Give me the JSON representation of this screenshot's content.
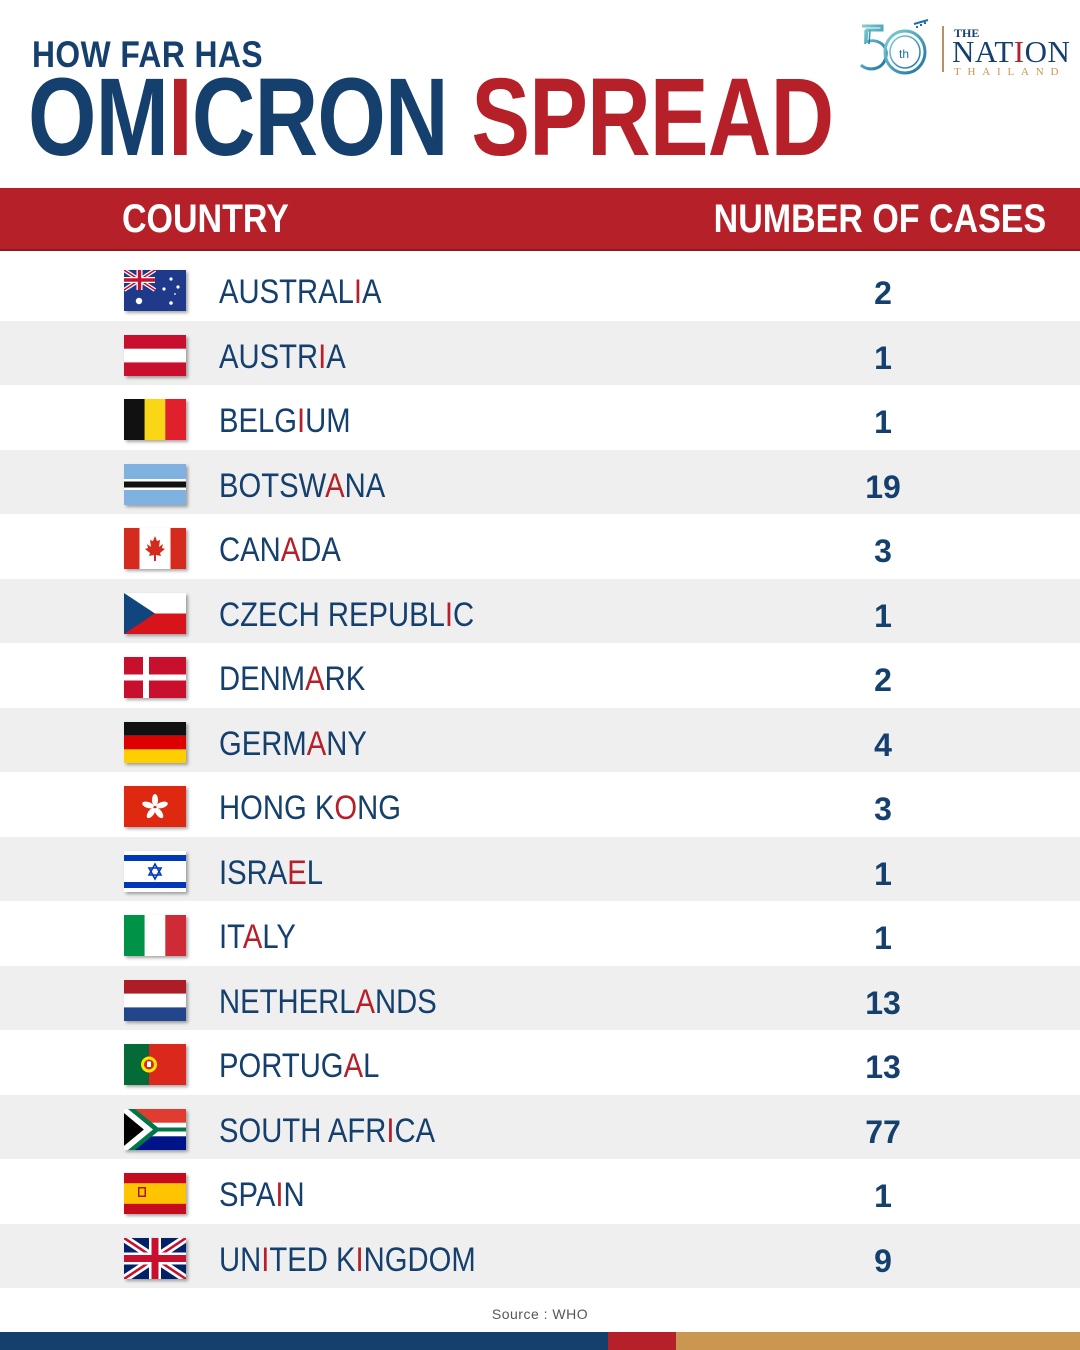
{
  "header": {
    "title_small": "HOW FAR HAS",
    "title_word1": [
      "OM",
      "I",
      "CRON"
    ],
    "title_word2": "SPREAD",
    "logo": {
      "the": "THE",
      "nation_pre": "NAT",
      "nation_i": "I",
      "nation_post": "ON",
      "thailand": "THAILAND",
      "anniversary": "50",
      "anniversary_suffix": "th"
    }
  },
  "chart_data": {
    "type": "table",
    "columns": [
      "COUNTRY",
      "NUMBER OF CASES"
    ],
    "rows": [
      {
        "country": "AUSTRALIA",
        "parts": [
          "AUSTRAL",
          "I",
          "A"
        ],
        "cases": 2,
        "flag": "australia-flag"
      },
      {
        "country": "AUSTRIA",
        "parts": [
          "AUSTR",
          "I",
          "A"
        ],
        "cases": 1,
        "flag": "austria-flag"
      },
      {
        "country": "BELGIUM",
        "parts": [
          "BELG",
          "I",
          "UM"
        ],
        "cases": 1,
        "flag": "belgium-flag"
      },
      {
        "country": "BOTSWANA",
        "parts": [
          "BOTSW",
          "A",
          "NA"
        ],
        "cases": 19,
        "flag": "botswana-flag"
      },
      {
        "country": "CANADA",
        "parts": [
          "CAN",
          "A",
          "DA"
        ],
        "cases": 3,
        "flag": "canada-flag"
      },
      {
        "country": "CZECH REPUBLIC",
        "parts": [
          "CZECH REPUBL",
          "I",
          "C"
        ],
        "cases": 1,
        "flag": "czech-flag"
      },
      {
        "country": "DENMARK",
        "parts": [
          "DENM",
          "A",
          "RK"
        ],
        "cases": 2,
        "flag": "denmark-flag"
      },
      {
        "country": "GERMANY",
        "parts": [
          "GERM",
          "A",
          "NY"
        ],
        "cases": 4,
        "flag": "germany-flag"
      },
      {
        "country": "HONG KONG",
        "parts": [
          "HONG K",
          "O",
          "NG"
        ],
        "cases": 3,
        "flag": "hong-kong-flag"
      },
      {
        "country": "ISRAEL",
        "parts": [
          "ISRA",
          "E",
          "L"
        ],
        "cases": 1,
        "flag": "israel-flag"
      },
      {
        "country": "ITALY",
        "parts": [
          "IT",
          "A",
          "LY"
        ],
        "cases": 1,
        "flag": "italy-flag"
      },
      {
        "country": "NETHERLANDS",
        "parts": [
          "NETHERL",
          "A",
          "NDS"
        ],
        "cases": 13,
        "flag": "netherlands-flag"
      },
      {
        "country": "PORTUGAL",
        "parts": [
          "PORTUG",
          "A",
          "L"
        ],
        "cases": 13,
        "flag": "portugal-flag"
      },
      {
        "country": "SOUTH AFRICA",
        "parts": [
          "SOUTH AFR",
          "I",
          "CA"
        ],
        "cases": 77,
        "flag": "south-africa-flag"
      },
      {
        "country": "SPAIN",
        "parts": [
          "SPA",
          "I",
          "N"
        ],
        "cases": 1,
        "flag": "spain-flag"
      },
      {
        "country": "UNITED KINGDOM",
        "parts": [
          "UN",
          "I",
          "TED K",
          "I",
          "NGDOM"
        ],
        "cases": 9,
        "flag": "united-kingdom-flag"
      }
    ]
  },
  "footer": {
    "source": "Source : WHO"
  },
  "colors": {
    "navy": "#15406e",
    "red": "#b52029",
    "gold": "#c9974f",
    "row_alt": "#efefef"
  }
}
